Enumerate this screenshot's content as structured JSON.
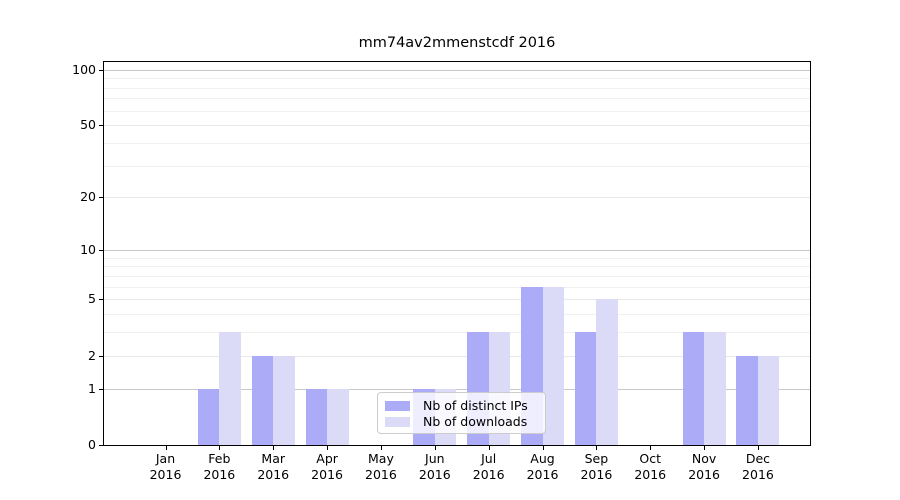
{
  "title": "mm74av2mmenstcdf 2016",
  "chart_data": {
    "type": "bar",
    "title": "mm74av2mmenstcdf 2016",
    "categories": [
      "Jan 2016",
      "Feb 2016",
      "Mar 2016",
      "Apr 2016",
      "May 2016",
      "Jun 2016",
      "Jul 2016",
      "Aug 2016",
      "Sep 2016",
      "Oct 2016",
      "Nov 2016",
      "Dec 2016"
    ],
    "series": [
      {
        "name": "Nb of distinct IPs",
        "color": "#ABABF7",
        "values": [
          0,
          1,
          2,
          1,
          0,
          1,
          3,
          6,
          3,
          0,
          3,
          2
        ]
      },
      {
        "name": "Nb of downloads",
        "color": "#DBDBF7",
        "values": [
          0,
          3,
          2,
          1,
          0,
          1,
          3,
          6,
          5,
          0,
          3,
          2
        ]
      }
    ],
    "yscale": "log1p",
    "ylim": [
      0,
      110
    ],
    "yticks": [
      0,
      1,
      2,
      5,
      10,
      20,
      50,
      100
    ],
    "minor_yticks": [
      3,
      4,
      6,
      7,
      8,
      9,
      30,
      40,
      60,
      70,
      80,
      90
    ],
    "emphasized_gridlines": [
      1,
      10,
      100
    ],
    "grid": "on",
    "legend_position": "bottom-center"
  },
  "colors": {
    "background": "#FFFFFF",
    "bar_distinct_ips": "#ABABF7",
    "bar_downloads": "#DBDBF7",
    "gridline_emphasized": "#C8C8C8",
    "gridline_labeled": "#E8E8E8",
    "gridline_minor": "#F0F0F0",
    "axis": "#000000",
    "legend_border": "#CCCCCC"
  }
}
